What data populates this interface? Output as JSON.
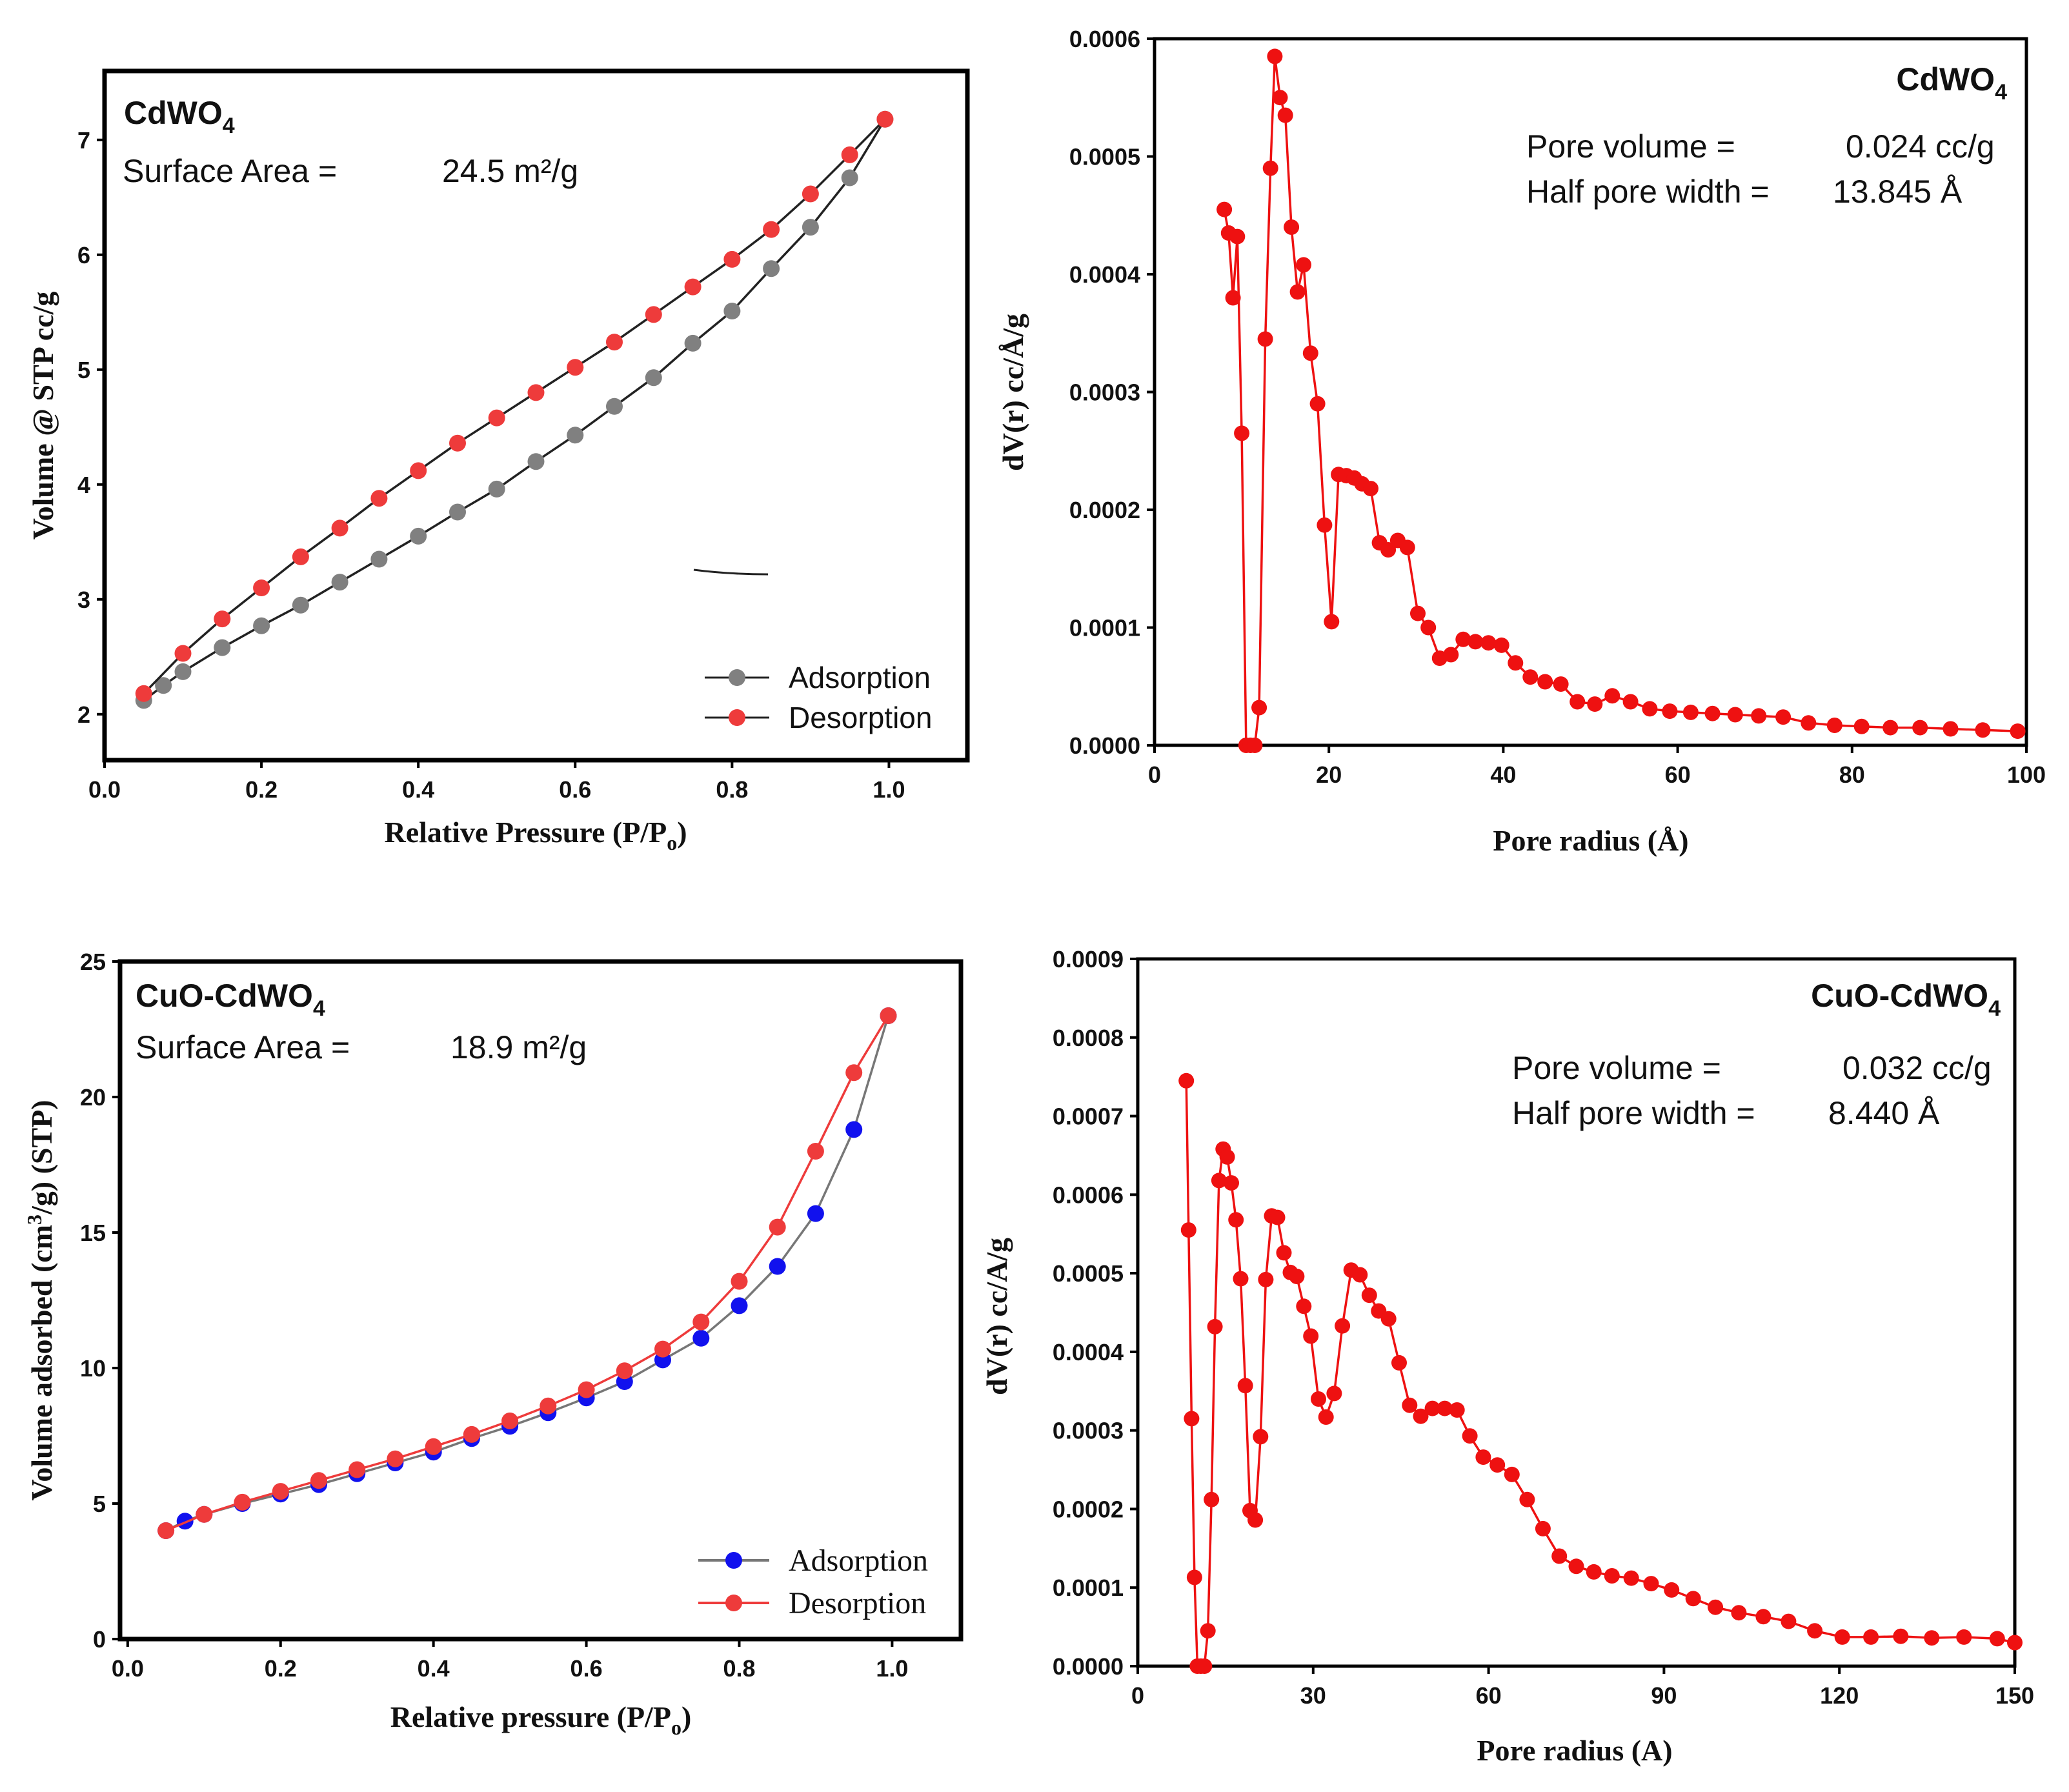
{
  "chart_data": [
    {
      "id": "p1",
      "type": "line",
      "xlabel": "Relative Pressure (P/P",
      "xlabel_sub": "o",
      "xlabel_close": ")",
      "ylabel": "Volume @ STP cc/g",
      "xlim": [
        0,
        1.1
      ],
      "ylim": [
        1.6,
        7.6
      ],
      "xticks": [
        0.0,
        0.2,
        0.4,
        0.6,
        0.8,
        1.0
      ],
      "xtick_labels": [
        "0.0",
        "0.2",
        "0.4",
        "0.6",
        "0.8",
        "1.0"
      ],
      "yticks": [
        2,
        3,
        4,
        5,
        6,
        7
      ],
      "ytick_labels": [
        "2",
        "3",
        "4",
        "5",
        "6",
        "7"
      ],
      "sample_main": "CdWO",
      "sample_sub": "4",
      "area_label": "Surface Area =",
      "area_value": "24.5 m²/g",
      "legend_position": "bottom-right",
      "series": [
        {
          "name": "Adsorption",
          "marker_color": "#808080",
          "line_color": "#222222",
          "x": [
            0.05,
            0.075,
            0.1,
            0.15,
            0.2,
            0.25,
            0.3,
            0.35,
            0.4,
            0.45,
            0.5,
            0.55,
            0.6,
            0.65,
            0.7,
            0.75,
            0.8,
            0.85,
            0.9,
            0.95,
            0.995
          ],
          "y": [
            2.12,
            2.25,
            2.37,
            2.58,
            2.77,
            2.95,
            3.15,
            3.35,
            3.55,
            3.76,
            3.96,
            4.2,
            4.43,
            4.68,
            4.93,
            5.23,
            5.51,
            5.88,
            6.24,
            6.67,
            7.18
          ]
        },
        {
          "name": "Desorption",
          "marker_color": "#ee3b3b",
          "line_color": "#222222",
          "x": [
            0.05,
            0.1,
            0.15,
            0.2,
            0.25,
            0.3,
            0.35,
            0.4,
            0.45,
            0.5,
            0.55,
            0.6,
            0.65,
            0.7,
            0.75,
            0.8,
            0.85,
            0.9,
            0.95,
            0.995
          ],
          "y": [
            2.18,
            2.53,
            2.83,
            3.1,
            3.37,
            3.62,
            3.88,
            4.12,
            4.36,
            4.58,
            4.8,
            5.02,
            5.24,
            5.48,
            5.72,
            5.96,
            6.22,
            6.53,
            6.87,
            7.18
          ]
        }
      ]
    },
    {
      "id": "p2",
      "type": "line",
      "xlabel": "Pore radius (Å)",
      "ylabel": "dV(r) cc/Å/g",
      "xlim": [
        0,
        100
      ],
      "ylim": [
        0,
        0.0006
      ],
      "xticks": [
        0,
        20,
        40,
        60,
        80,
        100
      ],
      "xtick_labels": [
        "0",
        "20",
        "40",
        "60",
        "80",
        "100"
      ],
      "yticks": [
        0,
        0.0001,
        0.0002,
        0.0003,
        0.0004,
        0.0005,
        0.0006
      ],
      "ytick_labels": [
        "0.0000",
        "0.0001",
        "0.0002",
        "0.0003",
        "0.0004",
        "0.0005",
        "0.0006"
      ],
      "sample_main": "CdWO",
      "sample_sub": "4",
      "pv_label": "Pore volume =",
      "pv_value": "0.024 cc/g",
      "hw_label": "Half pore width =",
      "hw_value": "13.845 Å",
      "series": [
        {
          "name": "dV(r)",
          "color": "#ee1111",
          "x": [
            8.0,
            8.5,
            9.0,
            9.5,
            10.0,
            10.5,
            11.0,
            11.5,
            12.0,
            12.7,
            13.3,
            13.8,
            14.4,
            15.0,
            15.7,
            16.4,
            17.1,
            17.9,
            18.7,
            19.5,
            20.3,
            21.1,
            22.0,
            22.9,
            23.8,
            24.8,
            25.8,
            26.8,
            27.9,
            29.0,
            30.2,
            31.4,
            32.7,
            34.0,
            35.4,
            36.8,
            38.3,
            39.8,
            41.4,
            43.1,
            44.8,
            46.6,
            48.5,
            50.5,
            52.5,
            54.6,
            56.8,
            59.1,
            61.5,
            64.0,
            66.6,
            69.3,
            72.1,
            75.0,
            78.0,
            81.1,
            84.4,
            87.8,
            91.3,
            95.0,
            99.0
          ],
          "y": [
            0.000455,
            0.000435,
            0.00038,
            0.000432,
            0.000265,
            0.0,
            0.0,
            0.0,
            3.2e-05,
            0.000345,
            0.00049,
            0.000585,
            0.00055,
            0.000535,
            0.00044,
            0.000385,
            0.000408,
            0.000333,
            0.00029,
            0.000187,
            0.000105,
            0.00023,
            0.000229,
            0.000227,
            0.000222,
            0.000218,
            0.000172,
            0.000166,
            0.000174,
            0.000168,
            0.000112,
            0.0001,
            7.4e-05,
            7.7e-05,
            9e-05,
            8.8e-05,
            8.7e-05,
            8.5e-05,
            7e-05,
            5.8e-05,
            5.4e-05,
            5.2e-05,
            3.7e-05,
            3.5e-05,
            4.2e-05,
            3.7e-05,
            3.1e-05,
            2.9e-05,
            2.8e-05,
            2.7e-05,
            2.6e-05,
            2.5e-05,
            2.4e-05,
            1.9e-05,
            1.7e-05,
            1.6e-05,
            1.5e-05,
            1.5e-05,
            1.4e-05,
            1.3e-05,
            1.2e-05
          ]
        }
      ]
    },
    {
      "id": "p3",
      "type": "line",
      "xlabel": "Relative pressure (P/P",
      "xlabel_sub": "o",
      "xlabel_close": ")",
      "ylabel": "Volume adsorbed (cm",
      "ylabel_sup": "3",
      "ylabel_rest": "/g) (STP)",
      "xlim": [
        -0.01,
        1.09
      ],
      "ylim": [
        0,
        25
      ],
      "xticks": [
        0.0,
        0.2,
        0.4,
        0.6,
        0.8,
        1.0
      ],
      "xtick_labels": [
        "0.0",
        "0.2",
        "0.4",
        "0.6",
        "0.8",
        "1.0"
      ],
      "yticks": [
        0,
        5,
        10,
        15,
        20,
        25
      ],
      "ytick_labels": [
        "0",
        "5",
        "10",
        "15",
        "20",
        "25"
      ],
      "sample_main": "CuO-CdWO",
      "sample_sub": "4",
      "area_label": "Surface Area =",
      "area_value": "18.9 m²/g",
      "legend_position": "bottom-right",
      "series": [
        {
          "name": "Adsorption",
          "marker_color": "#1111ee",
          "line_color": "#777777",
          "x": [
            0.05,
            0.075,
            0.1,
            0.15,
            0.2,
            0.25,
            0.3,
            0.35,
            0.4,
            0.45,
            0.5,
            0.55,
            0.6,
            0.65,
            0.7,
            0.75,
            0.8,
            0.85,
            0.9,
            0.95,
            0.995
          ],
          "y": [
            4.0,
            4.35,
            4.6,
            5.0,
            5.35,
            5.7,
            6.1,
            6.5,
            6.9,
            7.4,
            7.85,
            8.35,
            8.9,
            9.5,
            10.3,
            11.1,
            12.3,
            13.75,
            15.7,
            18.8,
            23.0
          ]
        },
        {
          "name": "Desorption",
          "marker_color": "#ee3b3b",
          "line_color": "#ee3b3b",
          "x": [
            0.05,
            0.1,
            0.15,
            0.2,
            0.25,
            0.3,
            0.35,
            0.4,
            0.45,
            0.5,
            0.55,
            0.6,
            0.65,
            0.7,
            0.75,
            0.8,
            0.85,
            0.9,
            0.95,
            0.995
          ],
          "y": [
            4.0,
            4.6,
            5.05,
            5.45,
            5.85,
            6.25,
            6.65,
            7.1,
            7.55,
            8.05,
            8.6,
            9.2,
            9.9,
            10.7,
            11.7,
            13.2,
            15.2,
            18.0,
            20.9,
            23.0
          ]
        }
      ]
    },
    {
      "id": "p4",
      "type": "line",
      "xlabel": "Pore radius (A)",
      "ylabel": "dV(r) cc/A/g",
      "xlim": [
        0,
        150
      ],
      "ylim": [
        0,
        0.0009
      ],
      "xticks": [
        0,
        30,
        60,
        90,
        120,
        150
      ],
      "xtick_labels": [
        "0",
        "30",
        "60",
        "90",
        "120",
        "150"
      ],
      "yticks": [
        0,
        0.0001,
        0.0002,
        0.0003,
        0.0004,
        0.0005,
        0.0006,
        0.0007,
        0.0008,
        0.0009
      ],
      "ytick_labels": [
        "0.0000",
        "0.0001",
        "0.0002",
        "0.0003",
        "0.0004",
        "0.0005",
        "0.0006",
        "0.0007",
        "0.0008",
        "0.0009"
      ],
      "sample_main": "CuO-CdWO",
      "sample_sub": "4",
      "pv_label": "Pore volume =",
      "pv_value": "0.032 cc/g",
      "hw_label": "Half pore width =",
      "hw_value": "8.440 Å",
      "series": [
        {
          "name": "dV(r)",
          "color": "#ee1111",
          "x": [
            8.3,
            8.7,
            9.2,
            9.7,
            10.2,
            10.8,
            11.4,
            12.0,
            12.6,
            13.2,
            13.9,
            14.6,
            15.3,
            16.0,
            16.8,
            17.6,
            18.4,
            19.2,
            20.1,
            21.0,
            21.9,
            22.9,
            23.9,
            25.0,
            26.1,
            27.2,
            28.4,
            29.6,
            30.9,
            32.2,
            33.6,
            35.0,
            36.5,
            38.0,
            39.6,
            41.2,
            42.9,
            44.7,
            46.5,
            48.4,
            50.4,
            52.5,
            54.6,
            56.8,
            59.1,
            61.5,
            64.0,
            66.6,
            69.3,
            72.1,
            75.0,
            78.0,
            81.1,
            84.4,
            87.8,
            91.3,
            95.0,
            98.8,
            102.8,
            107.0,
            111.3,
            115.8,
            120.5,
            125.4,
            130.5,
            135.8,
            141.3,
            147.0,
            150.0
          ],
          "y": [
            0.000745,
            0.000555,
            0.000315,
            0.000113,
            0.0,
            0.0,
            0.0,
            4.5e-05,
            0.000212,
            0.000432,
            0.000618,
            0.000658,
            0.000648,
            0.000615,
            0.000568,
            0.000493,
            0.000357,
            0.000198,
            0.000186,
            0.000292,
            0.000492,
            0.000573,
            0.000571,
            0.000526,
            0.000501,
            0.000496,
            0.000458,
            0.00042,
            0.00034,
            0.000317,
            0.000347,
            0.000433,
            0.000504,
            0.000498,
            0.000472,
            0.000452,
            0.000442,
            0.000386,
            0.000332,
            0.000318,
            0.000328,
            0.000328,
            0.000326,
            0.000293,
            0.000266,
            0.000256,
            0.000244,
            0.000212,
            0.000175,
            0.00014,
            0.000127,
            0.00012,
            0.000115,
            0.000112,
            0.000105,
            9.7e-05,
            8.6e-05,
            7.5e-05,
            6.8e-05,
            6.3e-05,
            5.7e-05,
            4.5e-05,
            3.7e-05,
            3.7e-05,
            3.8e-05,
            3.6e-05,
            3.7e-05,
            3.5e-05,
            3e-05
          ]
        }
      ]
    }
  ]
}
